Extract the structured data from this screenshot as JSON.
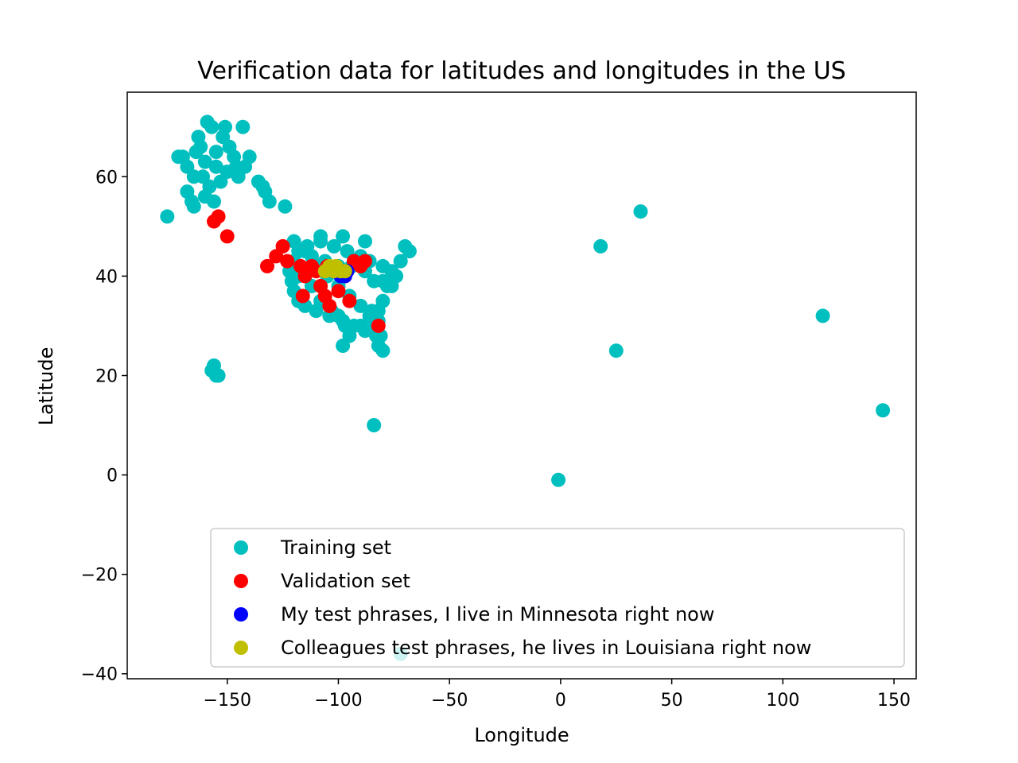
{
  "chart_data": {
    "type": "scatter",
    "title": "Verification data for latitudes and longitudes in the US",
    "xlabel": "Longitude",
    "ylabel": "Latitude",
    "xlim": [
      -195,
      160
    ],
    "ylim": [
      -41,
      77
    ],
    "xticks": [
      -150,
      -100,
      -50,
      0,
      50,
      100,
      150
    ],
    "xtick_labels": [
      "−150",
      "−100",
      "−50",
      "0",
      "50",
      "100",
      "150"
    ],
    "yticks": [
      -40,
      -20,
      0,
      20,
      40,
      60
    ],
    "ytick_labels": [
      "−40",
      "−20",
      "0",
      "20",
      "40",
      "60"
    ],
    "grid": false,
    "legend_position": "lower-right",
    "series": [
      {
        "name": "Training set",
        "color": "#00bfbf",
        "points": [
          [
            -165,
            60
          ],
          [
            -160,
            63
          ],
          [
            -155,
            65
          ],
          [
            -150,
            61
          ],
          [
            -147,
            64
          ],
          [
            -145,
            60
          ],
          [
            -162,
            66
          ],
          [
            -158,
            58
          ],
          [
            -152,
            68
          ],
          [
            -168,
            62
          ],
          [
            -170,
            64
          ],
          [
            -163,
            68
          ],
          [
            -157,
            70
          ],
          [
            -153,
            59
          ],
          [
            -149,
            66
          ],
          [
            -160,
            56
          ],
          [
            -156,
            55
          ],
          [
            -166,
            55
          ],
          [
            -172,
            64
          ],
          [
            -159,
            71
          ],
          [
            -151,
            70
          ],
          [
            -146,
            62
          ],
          [
            -155,
            62
          ],
          [
            -161,
            60
          ],
          [
            -164,
            65
          ],
          [
            -143,
            70
          ],
          [
            -140,
            64
          ],
          [
            -136,
            59
          ],
          [
            -133,
            57
          ],
          [
            -131,
            55
          ],
          [
            -134,
            58
          ],
          [
            -142,
            62
          ],
          [
            -168,
            57
          ],
          [
            -165,
            54
          ],
          [
            -177,
            52
          ],
          [
            -124,
            54
          ],
          [
            -120,
            47
          ],
          [
            -115,
            45
          ],
          [
            -110,
            42
          ],
          [
            -105,
            40
          ],
          [
            -100,
            38
          ],
          [
            -95,
            36
          ],
          [
            -90,
            34
          ],
          [
            -85,
            33
          ],
          [
            -82,
            31
          ],
          [
            -118,
            40
          ],
          [
            -112,
            38
          ],
          [
            -108,
            35
          ],
          [
            -103,
            33
          ],
          [
            -98,
            31
          ],
          [
            -93,
            30
          ],
          [
            -88,
            29
          ],
          [
            -83,
            28
          ],
          [
            -120,
            43
          ],
          [
            -114,
            46
          ],
          [
            -108,
            47
          ],
          [
            -102,
            46
          ],
          [
            -96,
            45
          ],
          [
            -90,
            44
          ],
          [
            -86,
            43
          ],
          [
            -80,
            42
          ],
          [
            -76,
            41
          ],
          [
            -72,
            43
          ],
          [
            -70,
            46
          ],
          [
            -68,
            45
          ],
          [
            -74,
            40
          ],
          [
            -78,
            38
          ],
          [
            -80,
            35
          ],
          [
            -82,
            33
          ],
          [
            -84,
            30
          ],
          [
            -86,
            32
          ],
          [
            -90,
            30
          ],
          [
            -95,
            28
          ],
          [
            -98,
            26
          ],
          [
            -97,
            30
          ],
          [
            -100,
            32
          ],
          [
            -104,
            32
          ],
          [
            -110,
            33
          ],
          [
            -115,
            34
          ],
          [
            -118,
            35
          ],
          [
            -120,
            37
          ],
          [
            -121,
            39
          ],
          [
            -122,
            41
          ],
          [
            -118,
            45
          ],
          [
            -112,
            44
          ],
          [
            -106,
            43
          ],
          [
            -100,
            42
          ],
          [
            -94,
            42
          ],
          [
            -88,
            41
          ],
          [
            -84,
            39
          ],
          [
            -80,
            39
          ],
          [
            -76,
            38
          ],
          [
            -108,
            48
          ],
          [
            -98,
            48
          ],
          [
            -88,
            47
          ],
          [
            -80,
            25
          ],
          [
            -82,
            26
          ],
          [
            -81,
            28
          ],
          [
            -156,
            22
          ],
          [
            -157,
            21
          ],
          [
            -155,
            20
          ],
          [
            -154,
            20
          ],
          [
            -84,
            10
          ],
          [
            18,
            46
          ],
          [
            36,
            53
          ],
          [
            25,
            25
          ],
          [
            118,
            32
          ],
          [
            145,
            13
          ],
          [
            -1,
            -1
          ],
          [
            -72,
            -36
          ]
        ]
      },
      {
        "name": "Validation set",
        "color": "#ff0000",
        "points": [
          [
            -156,
            51
          ],
          [
            -154,
            52
          ],
          [
            -150,
            48
          ],
          [
            -132,
            42
          ],
          [
            -128,
            44
          ],
          [
            -125,
            46
          ],
          [
            -123,
            43
          ],
          [
            -117,
            42
          ],
          [
            -115,
            40
          ],
          [
            -110,
            41
          ],
          [
            -108,
            38
          ],
          [
            -106,
            36
          ],
          [
            -104,
            34
          ],
          [
            -100,
            37
          ],
          [
            -97,
            40
          ],
          [
            -93,
            43
          ],
          [
            -90,
            42
          ],
          [
            -88,
            43
          ],
          [
            -82,
            30
          ],
          [
            -116,
            36
          ],
          [
            -102,
            41
          ],
          [
            -95,
            35
          ],
          [
            -112,
            42
          ],
          [
            -105,
            42
          ]
        ]
      },
      {
        "name": "My test phrases, I live in Minnesota right now",
        "color": "#0000ff",
        "points": [
          [
            -100,
            41
          ],
          [
            -99,
            40
          ],
          [
            -98,
            41
          ],
          [
            -97,
            40
          ],
          [
            -96,
            41
          ]
        ]
      },
      {
        "name": "Colleagues test phrases, he lives in Louisiana right now",
        "color": "#bfbf00",
        "points": [
          [
            -106,
            41
          ],
          [
            -104,
            42
          ],
          [
            -102,
            41
          ],
          [
            -101,
            42
          ],
          [
            -99,
            41
          ],
          [
            -97,
            41
          ]
        ]
      }
    ]
  }
}
